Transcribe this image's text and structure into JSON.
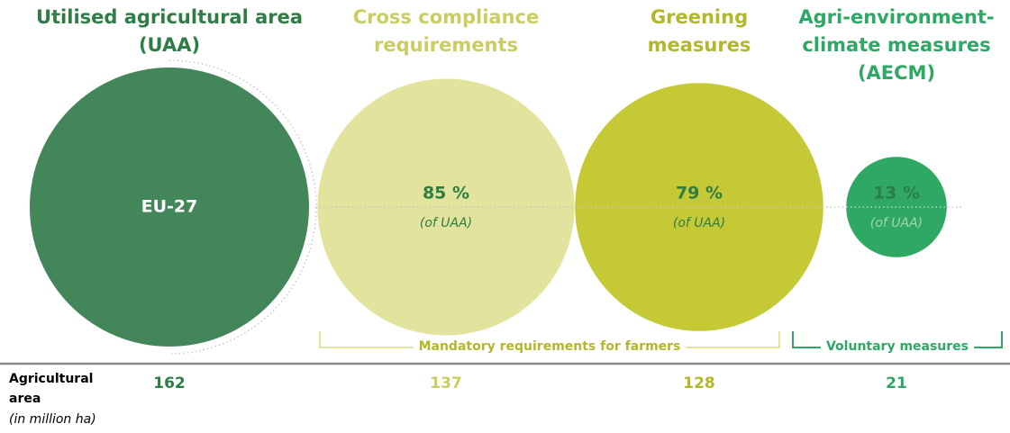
{
  "chart_data": {
    "type": "bubble",
    "categories": [
      "Utilised agricultural area (UAA)",
      "Cross compliance requirements",
      "Greening measures",
      "Agri-environment-climate measures (AECM)"
    ],
    "colors": [
      "#43865a",
      "#e2e39c",
      "#c6c936",
      "#2fa864"
    ],
    "title_colors": [
      "#2e7d45",
      "#cacd60",
      "#b3b82a",
      "#2ea865"
    ],
    "values": [
      162,
      137,
      128,
      21
    ],
    "circle_label": "EU-27",
    "shares": [
      null,
      85,
      79,
      13
    ],
    "share_labels": [
      null,
      "85 %",
      "79 %",
      "13 %"
    ],
    "share_note": "(of UAA)",
    "row_label": "Agricultural area",
    "row_unit": "(in million ha)",
    "groups": [
      {
        "label": "Mandatory requirements for farmers"
      },
      {
        "label": "Voluntary measures"
      }
    ]
  }
}
